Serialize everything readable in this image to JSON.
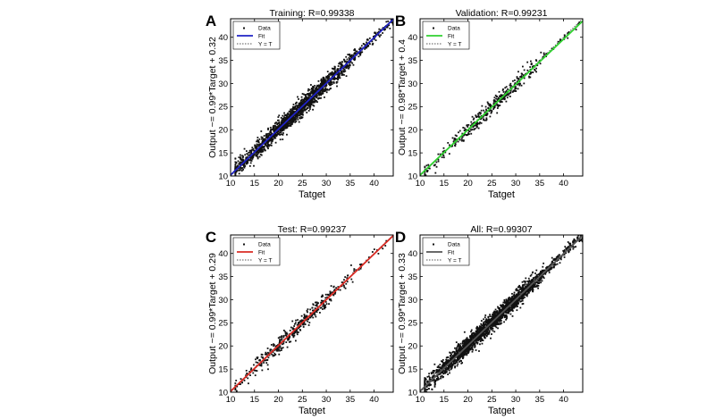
{
  "axis_limits": {
    "x": [
      10,
      44
    ],
    "y": [
      10,
      44
    ]
  },
  "ticks": [
    10,
    15,
    20,
    25,
    30,
    35,
    40
  ],
  "chart_data": [
    {
      "type": "scatter",
      "panel_label": "A",
      "title": "Training: R=0.99338",
      "xlabel": "Tatget",
      "ylabel": "Output ~= 0.99*Target + 0.32",
      "xlim": [
        10,
        44
      ],
      "ylim": [
        10,
        44
      ],
      "grid": false,
      "legend_position": "top-left",
      "legend": [
        "Data",
        "Fit",
        "Y = T"
      ],
      "fit": {
        "slope": 0.99,
        "intercept": 0.32,
        "color": "#1f22c4"
      },
      "R": 0.99338,
      "series": [
        {
          "name": "Data",
          "x_range": [
            11,
            44
          ],
          "n_points": 1700,
          "spread": 0.95,
          "density_center": 24,
          "density_sd": 7
        }
      ]
    },
    {
      "type": "scatter",
      "panel_label": "B",
      "title": "Validation: R=0.99231",
      "xlabel": "Tatget",
      "ylabel": "Output ~= 0.98*Target + 0.4",
      "xlim": [
        10,
        44
      ],
      "ylim": [
        10,
        44
      ],
      "grid": false,
      "legend_position": "top-left",
      "legend": [
        "Data",
        "Fit",
        "Y = T"
      ],
      "fit": {
        "slope": 0.98,
        "intercept": 0.4,
        "color": "#2fd12f"
      },
      "R": 0.99231,
      "series": [
        {
          "name": "Data",
          "x_range": [
            11,
            44
          ],
          "n_points": 420,
          "spread": 0.9,
          "density_center": 24,
          "density_sd": 6
        }
      ]
    },
    {
      "type": "scatter",
      "panel_label": "C",
      "title": "Test: R=0.99237",
      "xlabel": "Tatget",
      "ylabel": "Output ~= 0.99*Target + 0.29",
      "xlim": [
        10,
        44
      ],
      "ylim": [
        10,
        44
      ],
      "grid": false,
      "legend_position": "top-left",
      "legend": [
        "Data",
        "Fit",
        "Y = T"
      ],
      "fit": {
        "slope": 0.99,
        "intercept": 0.29,
        "color": "#d92b24"
      },
      "R": 0.99237,
      "series": [
        {
          "name": "Data",
          "x_range": [
            11,
            44
          ],
          "n_points": 420,
          "spread": 0.9,
          "density_center": 24,
          "density_sd": 6
        }
      ]
    },
    {
      "type": "scatter",
      "panel_label": "D",
      "title": "All: R=0.99307",
      "xlabel": "Tatget",
      "ylabel": "Output ~= 0.99*Target + 0.33",
      "xlim": [
        10,
        44
      ],
      "ylim": [
        10,
        44
      ],
      "grid": false,
      "legend_position": "top-left",
      "legend": [
        "Data",
        "Fit",
        "Y = T"
      ],
      "fit": {
        "slope": 0.99,
        "intercept": 0.33,
        "color": "#555555"
      },
      "R": 0.99307,
      "series": [
        {
          "name": "Data",
          "x_range": [
            11,
            44
          ],
          "n_points": 2300,
          "spread": 0.95,
          "density_center": 24,
          "density_sd": 7
        }
      ]
    }
  ]
}
